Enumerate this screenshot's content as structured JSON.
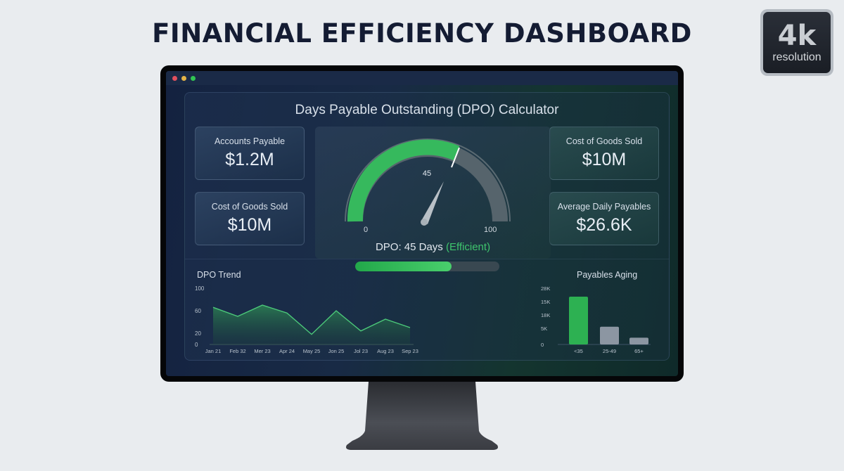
{
  "page": {
    "title": "FINANCIAL EFFICIENCY DASHBOARD"
  },
  "badge": {
    "big": "4k",
    "small": "resolution"
  },
  "window": {
    "controls": [
      "#e0505e",
      "#e4b347",
      "#31c553"
    ]
  },
  "app": {
    "title": "Days Payable Outstanding (DPO) Calculator",
    "kpis_left": [
      {
        "label": "Accounts Payable",
        "value": "$1.2M"
      },
      {
        "label": "Cost of Goods Sold",
        "value": "$10M"
      }
    ],
    "kpis_right": [
      {
        "label": "Cost of Goods Sold",
        "value": "$10M"
      },
      {
        "label": "Average Daily Payables",
        "value": "$26.6K"
      }
    ],
    "gauge": {
      "value": 45,
      "value_label": "45",
      "min_label": "0",
      "max_label": "100",
      "min": 0,
      "max": 100
    },
    "dpo_text": "DPO: 45 Days",
    "dpo_status": "(Efficient)",
    "progress_pct": 67,
    "colors": {
      "accent": "#3ec46d",
      "bar_gray": "#8c96a2"
    }
  },
  "chart_data": [
    {
      "type": "area",
      "title": "DPO Trend",
      "categories": [
        "Jan 21",
        "Feb 32",
        "Mer 23",
        "Apr 24",
        "May 25",
        "Jon 25",
        "Jol 23",
        "Aug 23",
        "Sep 23"
      ],
      "values": [
        66,
        50,
        70,
        56,
        18,
        60,
        24,
        45,
        30
      ],
      "yticks": [
        "100",
        "60",
        "20",
        "0"
      ],
      "ylim": [
        0,
        100
      ],
      "xlabel": "",
      "ylabel": ""
    },
    {
      "type": "bar",
      "title": "Payables Aging",
      "categories": [
        "<35",
        "25-49",
        "65+"
      ],
      "values": [
        17000,
        6300,
        2400
      ],
      "yticks": [
        "28K",
        "15K",
        "18K",
        "5K",
        "0"
      ],
      "ylim": [
        0,
        20000
      ],
      "colors": [
        "#2db152",
        "#8c96a2",
        "#8c96a2"
      ]
    }
  ]
}
